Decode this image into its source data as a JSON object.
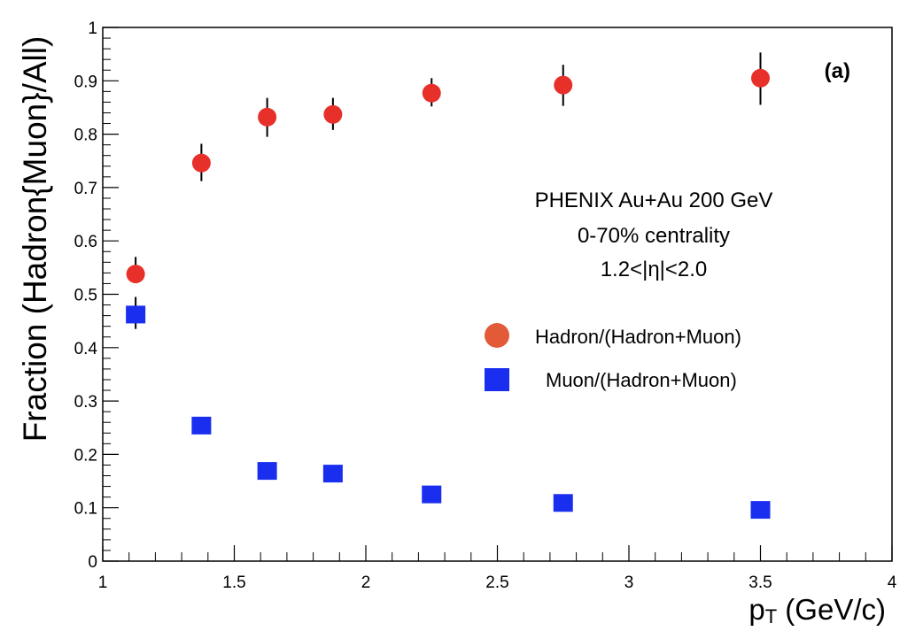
{
  "chart_data": {
    "type": "scatter",
    "panel_label": "(a)",
    "xlabel_main": "p",
    "xlabel_sub": "T",
    "xlabel_rest": " (GeV/c)",
    "ylabel": "Fraction (Hadron{Muon}/All)",
    "xlim": [
      1,
      4
    ],
    "ylim": [
      0,
      1
    ],
    "xticks": [
      1,
      1.5,
      2,
      2.5,
      3,
      3.5,
      4
    ],
    "xtick_labels": [
      "1",
      "1.5",
      "2",
      "2.5",
      "3",
      "3.5",
      "4"
    ],
    "yticks": [
      0,
      0.1,
      0.2,
      0.3,
      0.4,
      0.5,
      0.6,
      0.7,
      0.8,
      0.9,
      1
    ],
    "ytick_labels": [
      "0",
      "0.1",
      "0.2",
      "0.3",
      "0.4",
      "0.5",
      "0.6",
      "0.7",
      "0.8",
      "0.9",
      "1"
    ],
    "grid": false,
    "annotation": [
      "PHENIX Au+Au 200 GeV",
      "0-70% centrality",
      "1.2<|η|<2.0"
    ],
    "legend_position": "right-middle",
    "series": [
      {
        "name": "Hadron/(Hadron+Muon)",
        "marker": "circle",
        "color": "#e8302a",
        "x": [
          1.125,
          1.375,
          1.625,
          1.875,
          2.25,
          2.75,
          3.5
        ],
        "y": [
          0.538,
          0.746,
          0.832,
          0.837,
          0.877,
          0.892,
          0.905
        ],
        "err_low": [
          0.538,
          0.712,
          0.795,
          0.808,
          0.852,
          0.853,
          0.855
        ],
        "err_high": [
          0.57,
          0.782,
          0.868,
          0.868,
          0.905,
          0.93,
          0.953
        ]
      },
      {
        "name": "Muon/(Hadron+Muon)",
        "marker": "square",
        "color": "#1a2ef0",
        "x": [
          1.125,
          1.375,
          1.625,
          1.875,
          2.25,
          2.75,
          3.5
        ],
        "y": [
          0.462,
          0.254,
          0.169,
          0.164,
          0.125,
          0.109,
          0.096
        ],
        "err_low": [
          0.435,
          0.254,
          0.169,
          0.164,
          0.125,
          0.109,
          0.096
        ],
        "err_high": [
          0.495,
          0.254,
          0.169,
          0.164,
          0.125,
          0.109,
          0.096
        ]
      }
    ]
  }
}
